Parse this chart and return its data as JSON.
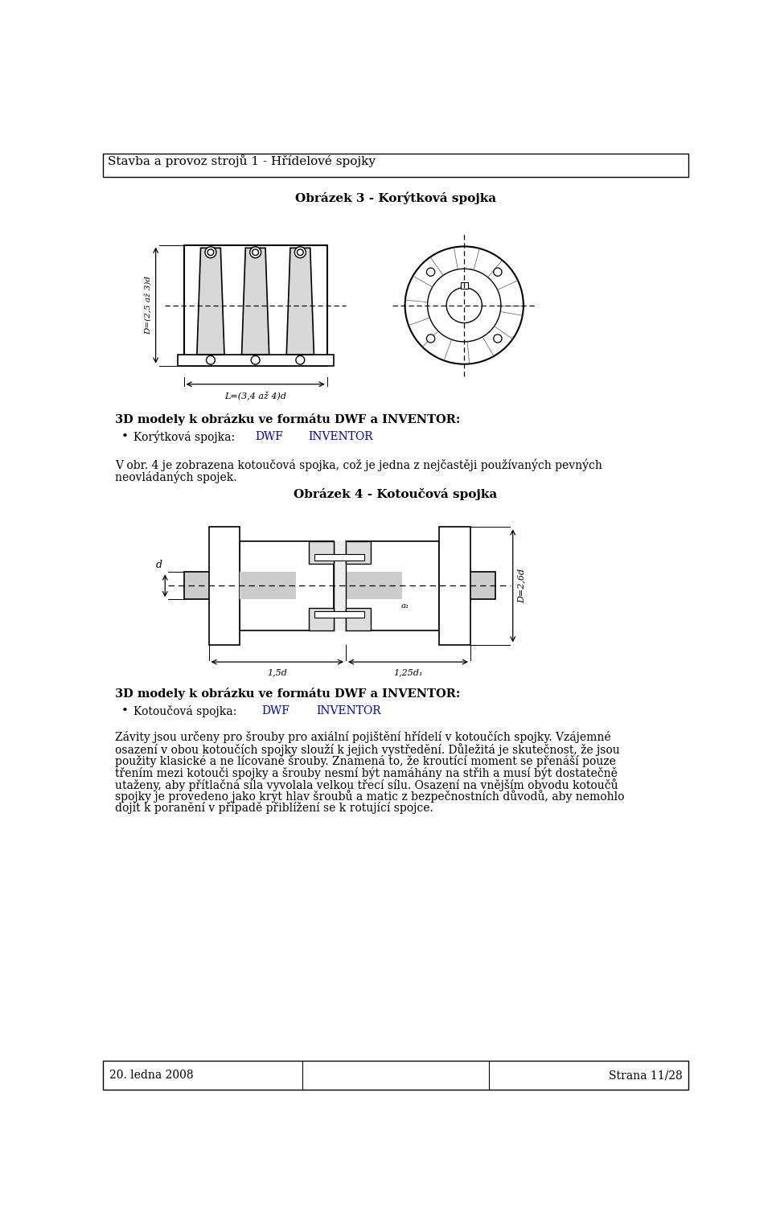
{
  "page_width": 9.6,
  "page_height": 15.27,
  "bg_color": "#ffffff",
  "header_text": "Stavba a provoz strojů 1 - Hřídelové spojky",
  "footer_left": "20. ledna 2008",
  "footer_right": "Strana 11/28",
  "fig3_title": "Obrázek 3 - Korýtková spojka",
  "fig4_title": "Obrázek 4 - Kotoučová spojka",
  "section1_title": "3D modely k obrázku ve formátu DWF a INVENTOR:",
  "section1_bullet": "Korýtková spojka:",
  "section2_intro_line1": "V obr. 4 je zobrazena kotoučová spojka, což je jedna z nejčastěji používaných pevných",
  "section2_intro_line2": "neovládaných spojek.",
  "section2_title": "3D modely k obrázku ve formátu DWF a INVENTOR:",
  "section2_bullet": "Kotoučová spojka:",
  "para1_lines": [
    "Závity jsou určeny pro šrouby pro axiální pojištění hřídelí v kotoučích spojky. Vzájemné",
    "osazení v obou kotoučích spojky slouží k jejich vystředění. Důležitá je skutečnost, že jsou",
    "použity klasické a ne lícované šrouby. Znamená to, že kroutící moment se přenáší pouze",
    "třením mezi kotouči spojky a šrouby nesmí být namáhány na střih a musí být dostatečně",
    "utaženy, aby přítlačná síla vyvolala velkou třecí sílu. Osazení na vnějším obvodu kotoučů",
    "spojky je provedeno jako kryt hlav šroubů a matic z bezpečnostních důvodů, aby nemohlo",
    "dojít k poranění v případě přiblížení se k rotující spojce."
  ],
  "text_color": "#000000",
  "link_color": "#0000cc",
  "border_color": "#000000",
  "font_size_header": 11,
  "font_size_body": 10,
  "font_size_title": 10.5,
  "font_size_fig_title": 11
}
